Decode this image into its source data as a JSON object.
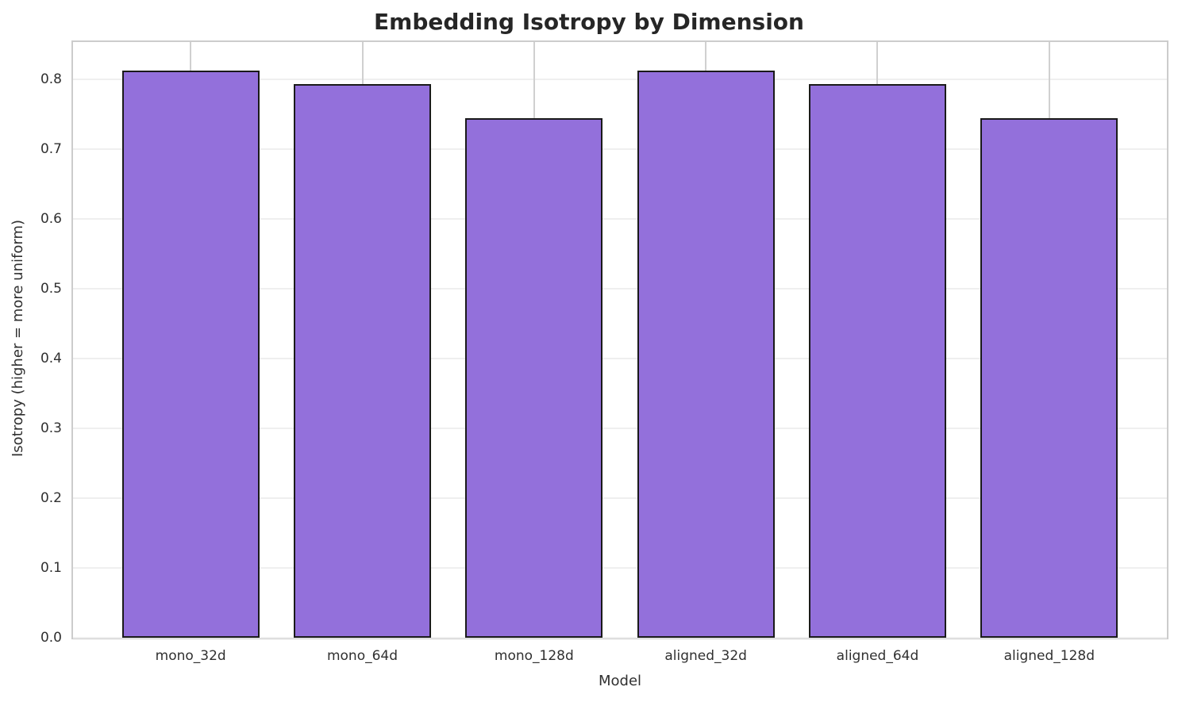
{
  "chart_data": {
    "type": "bar",
    "title": "Embedding Isotropy by Dimension",
    "xlabel": "Model",
    "ylabel": "Isotropy (higher = more uniform)",
    "categories": [
      "mono_32d",
      "mono_64d",
      "mono_128d",
      "aligned_32d",
      "aligned_64d",
      "aligned_128d"
    ],
    "values": [
      0.813,
      0.794,
      0.745,
      0.813,
      0.794,
      0.745
    ],
    "ylim": [
      0,
      0.854
    ],
    "yticks": [
      0.0,
      0.1,
      0.2,
      0.3,
      0.4,
      0.5,
      0.6,
      0.7,
      0.8
    ],
    "xlim": [
      -0.685,
      5.685
    ],
    "bar_width_units": 0.8,
    "grid": true,
    "legend_position": "none",
    "colors": {
      "bar_fill": "#9370DB",
      "bar_edge": "#1a1a1a",
      "h_grid": "#efefef",
      "v_grid": "#d0d0d0",
      "spine": "#cccccc",
      "text": "#303030",
      "title_text": "#262626"
    }
  }
}
